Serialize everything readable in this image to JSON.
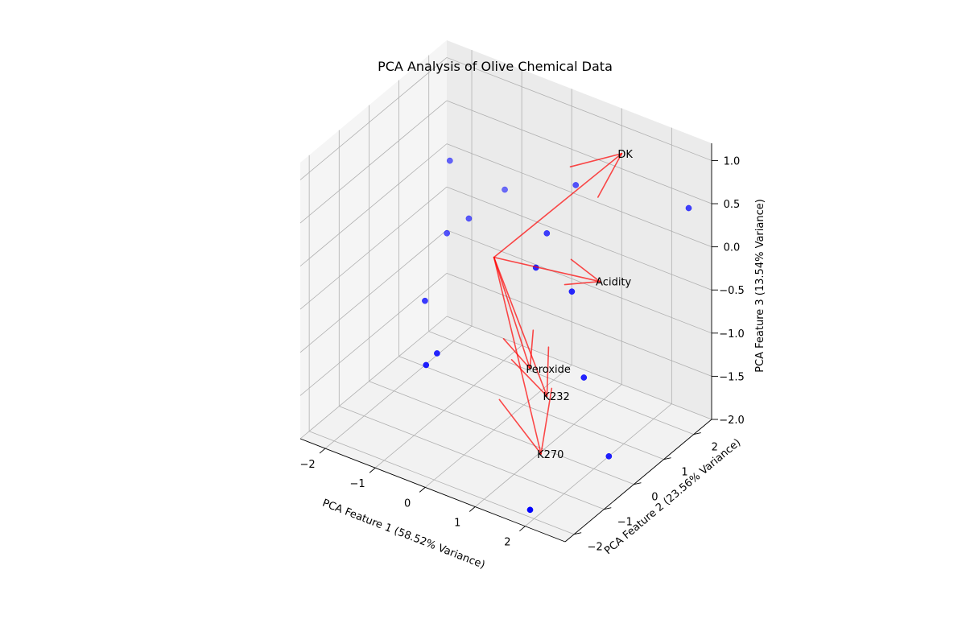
{
  "chart_data": {
    "type": "scatter-3d",
    "title": "PCA Analysis of Olive Chemical Data",
    "xlabel": "PCA Feature 1 (58.52% Variance)",
    "ylabel": "PCA Feature 2 (23.56% Variance)",
    "zlabel": "PCA Feature 3 (13.54% Variance)",
    "xlim": [
      -2.5,
      2.8
    ],
    "ylim": [
      -2.3,
      2.6
    ],
    "zlim": [
      -2.0,
      1.2
    ],
    "xticks": [
      -2,
      -1,
      0,
      1,
      2
    ],
    "yticks": [
      -2,
      -1,
      0,
      1,
      2
    ],
    "zticks": [
      -2.0,
      -1.5,
      -1.0,
      -0.5,
      0.0,
      0.5,
      1.0
    ],
    "xtick_labels": [
      "−2",
      "−1",
      "0",
      "1",
      "2"
    ],
    "ytick_labels": [
      "−2",
      "−1",
      "0",
      "1",
      "2"
    ],
    "ztick_labels": [
      "−2.0",
      "−1.5",
      "−1.0",
      "−0.5",
      "0.0",
      "0.5",
      "1.0"
    ],
    "grid": true,
    "point_color": "#0000ff",
    "arrow_color": "#ff0000",
    "points": [
      {
        "x": -1.9,
        "y": 1.7,
        "z": 0.2
      },
      {
        "x": -1.6,
        "y": 1.1,
        "z": -0.4
      },
      {
        "x": -1.4,
        "y": 1.5,
        "z": -0.3
      },
      {
        "x": -1.1,
        "y": 2.2,
        "z": -0.1
      },
      {
        "x": -1.5,
        "y": 0.2,
        "z": -0.9
      },
      {
        "x": -1.0,
        "y": -0.6,
        "z": -1.3
      },
      {
        "x": -0.9,
        "y": -0.4,
        "z": -1.2
      },
      {
        "x": 0.5,
        "y": 1.9,
        "z": 0.4
      },
      {
        "x": 0.4,
        "y": 1.1,
        "z": 0.05
      },
      {
        "x": 0.6,
        "y": 0.4,
        "z": -0.1
      },
      {
        "x": 1.2,
        "y": 0.6,
        "z": -0.3
      },
      {
        "x": 1.5,
        "y": 0.5,
        "z": -1.2
      },
      {
        "x": 2.0,
        "y": 0.5,
        "z": -2.0
      },
      {
        "x": 2.7,
        "y": 2.0,
        "z": 0.6
      },
      {
        "x": 1.8,
        "y": -1.8,
        "z": -2.0
      }
    ],
    "loadings": [
      {
        "label": "DK",
        "x": 1.6,
        "y": 1.6,
        "z": 1.1
      },
      {
        "label": "Acidity",
        "x": 1.7,
        "y": 0.7,
        "z": -0.1
      },
      {
        "label": "Peroxide",
        "x": 0.9,
        "y": -0.3,
        "z": -1.0
      },
      {
        "label": "K232",
        "x": 1.3,
        "y": -0.4,
        "z": -1.2
      },
      {
        "label": "K270",
        "x": 1.6,
        "y": -1.1,
        "z": -1.6
      }
    ],
    "loading_origin": {
      "x": 0.0,
      "y": 0.0,
      "z": 0.0
    }
  }
}
